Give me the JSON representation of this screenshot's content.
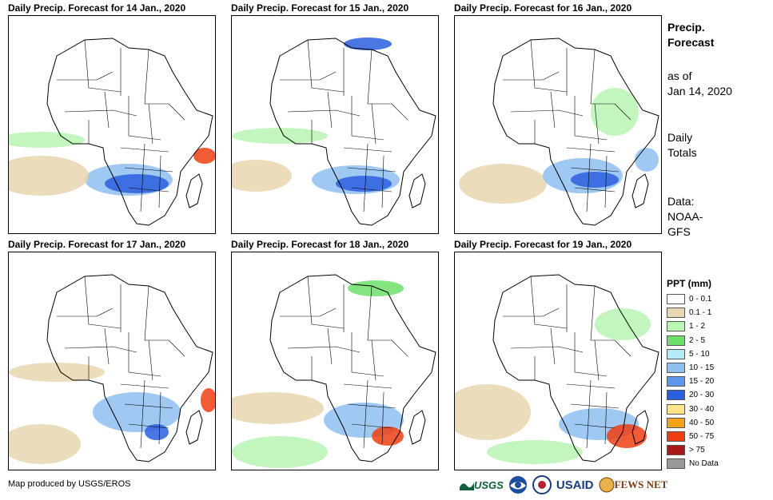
{
  "panels": [
    {
      "title": "Daily Precip. Forecast for 14 Jan., 2020"
    },
    {
      "title": "Daily Precip. Forecast for 15 Jan., 2020"
    },
    {
      "title": "Daily Precip. Forecast for 16 Jan., 2020"
    },
    {
      "title": "Daily Precip. Forecast for 17 Jan., 2020"
    },
    {
      "title": "Daily Precip. Forecast for 18 Jan., 2020"
    },
    {
      "title": "Daily Precip. Forecast for 19 Jan., 2020"
    }
  ],
  "side": {
    "heading_1": "Precip.",
    "heading_2": "Forecast",
    "asof_1": "as of",
    "asof_2": "Jan 14, 2020",
    "totals_1": "Daily",
    "totals_2": "Totals",
    "data_1": "Data:",
    "data_2": "NOAA-",
    "data_3": "GFS"
  },
  "legend": {
    "title": "PPT (mm)",
    "items": [
      {
        "label": "0 - 0.1",
        "color": "#ffffff"
      },
      {
        "label": "0.1 - 1",
        "color": "#e8d6b0"
      },
      {
        "label": "1 - 2",
        "color": "#b9f5b3"
      },
      {
        "label": "2 - 5",
        "color": "#6ee06a"
      },
      {
        "label": "5 - 10",
        "color": "#b4ecf4"
      },
      {
        "label": "10 - 15",
        "color": "#8ec0f0"
      },
      {
        "label": "15 - 20",
        "color": "#5f98ea"
      },
      {
        "label": "20 - 30",
        "color": "#2b5fe0"
      },
      {
        "label": "30 - 40",
        "color": "#ffe587"
      },
      {
        "label": "40 - 50",
        "color": "#f3a21a"
      },
      {
        "label": "50 - 75",
        "color": "#ee3e12"
      },
      {
        "label": "> 75",
        "color": "#a81a1a"
      },
      {
        "label": "No Data",
        "color": "#999999"
      }
    ]
  },
  "footer": {
    "credit": "Map produced by USGS/EROS"
  },
  "logos": {
    "usgs": "USGS",
    "usaid": "USAID",
    "fews": "FEWS NET"
  },
  "colors": {
    "tan": "#e8d6b0",
    "light_green": "#b9f5b3",
    "green": "#6ee06a",
    "blue": "#2b5fe0",
    "lightblue": "#8ec0f0",
    "red": "#ee3e12"
  }
}
